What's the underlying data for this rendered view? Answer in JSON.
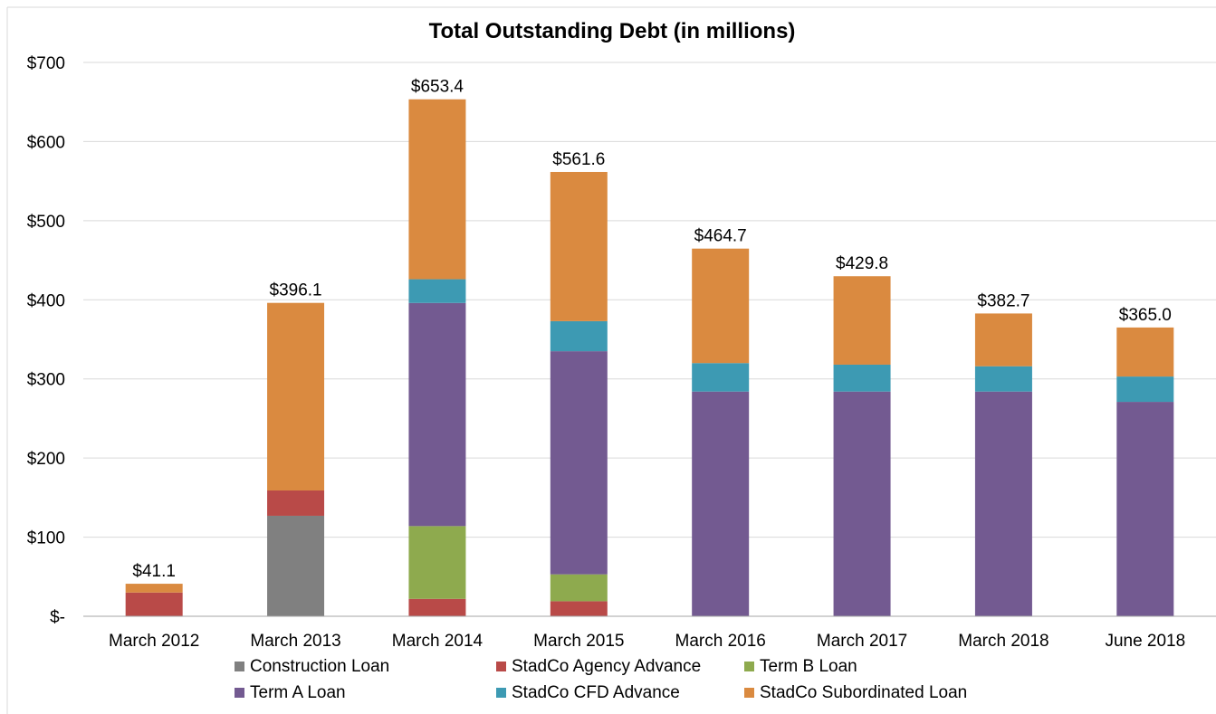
{
  "chart_data": {
    "type": "bar",
    "stacked": true,
    "title": "Total Outstanding Debt (in millions)",
    "xlabel": "",
    "ylabel": "",
    "ylim": [
      0,
      700
    ],
    "y_ticks": [
      "$-",
      "$100",
      "$200",
      "$300",
      "$400",
      "$500",
      "$600",
      "$700"
    ],
    "grid": true,
    "legend_position": "bottom",
    "categories": [
      "March 2012",
      "March 2013",
      "March 2014",
      "March 2015",
      "March 2016",
      "March 2017",
      "March 2018",
      "June 2018"
    ],
    "totals": [
      "$41.1",
      "$396.1",
      "$653.4",
      "$561.6",
      "$464.7",
      "$429.8",
      "$382.7",
      "$365.0"
    ],
    "series": [
      {
        "name": "Construction Loan",
        "color": "#808080",
        "values": [
          0,
          127,
          0,
          0,
          0,
          0,
          0,
          0
        ]
      },
      {
        "name": "StadCo Agency Advance",
        "color": "#B94A48",
        "values": [
          30,
          32,
          22,
          19,
          0,
          0,
          0,
          0
        ]
      },
      {
        "name": "Term B Loan",
        "color": "#8EAA4E",
        "values": [
          0,
          0,
          92,
          34,
          0,
          0,
          0,
          0
        ]
      },
      {
        "name": "Term A Loan",
        "color": "#735A91",
        "values": [
          0,
          0,
          282,
          282,
          284,
          284,
          284,
          271
        ]
      },
      {
        "name": "StadCo CFD Advance",
        "color": "#3D9AB3",
        "values": [
          0,
          0,
          30,
          38,
          36,
          34,
          32,
          32
        ]
      },
      {
        "name": "StadCo Subordinated Loan",
        "color": "#DA8A40",
        "values": [
          11.1,
          237.1,
          227.4,
          188.6,
          144.7,
          111.8,
          66.7,
          62
        ]
      }
    ]
  }
}
